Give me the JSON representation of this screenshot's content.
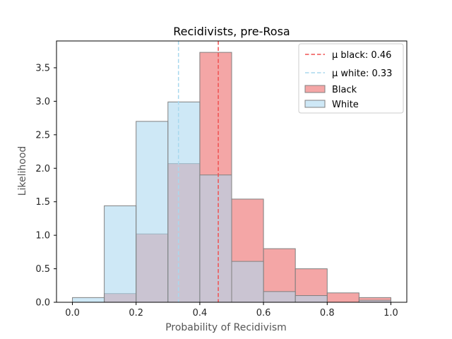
{
  "chart_data": {
    "type": "histogram",
    "title": "Recidivists, pre-Rosa",
    "xlabel": "Probability of Recidivism",
    "ylabel": "Likelihood",
    "xlim": [
      -0.05,
      1.05
    ],
    "ylim": [
      0,
      3.9
    ],
    "xticks": [
      0.0,
      0.2,
      0.4,
      0.6,
      0.8,
      1.0
    ],
    "xtick_labels": [
      "0.0",
      "0.2",
      "0.4",
      "0.6",
      "0.8",
      "1.0"
    ],
    "yticks": [
      0.0,
      0.5,
      1.0,
      1.5,
      2.0,
      2.5,
      3.0,
      3.5
    ],
    "ytick_labels": [
      "0.0",
      "0.5",
      "1.0",
      "1.5",
      "2.0",
      "2.5",
      "3.0",
      "3.5"
    ],
    "bin_edges": [
      0.0,
      0.1,
      0.2,
      0.3,
      0.4,
      0.5,
      0.6,
      0.7,
      0.8,
      0.9,
      1.0
    ],
    "series": [
      {
        "name": "Black",
        "color": "#f08080",
        "opacity": 0.7,
        "values": [
          0.0,
          0.13,
          1.02,
          2.07,
          3.73,
          1.54,
          0.8,
          0.5,
          0.14,
          0.07
        ]
      },
      {
        "name": "White",
        "color": "#add8f0",
        "opacity": 0.6,
        "values": [
          0.07,
          1.44,
          2.7,
          2.99,
          1.9,
          0.61,
          0.16,
          0.1,
          0.0,
          0.03
        ]
      }
    ],
    "mean_lines": [
      {
        "label": "μ black: 0.46",
        "value": 0.458,
        "color": "#f05050"
      },
      {
        "label": "μ white: 0.33",
        "value": 0.333,
        "color": "#a8d8ee"
      }
    ],
    "legend": {
      "position": "upper-right",
      "entries": [
        {
          "label": "μ black: 0.46",
          "kind": "line",
          "color": "#f05050"
        },
        {
          "label": "μ white: 0.33",
          "kind": "line",
          "color": "#a8d8ee"
        },
        {
          "label": "Black",
          "kind": "patch",
          "color": "#f08080"
        },
        {
          "label": "White",
          "kind": "patch",
          "color": "#add8f0"
        }
      ]
    }
  }
}
